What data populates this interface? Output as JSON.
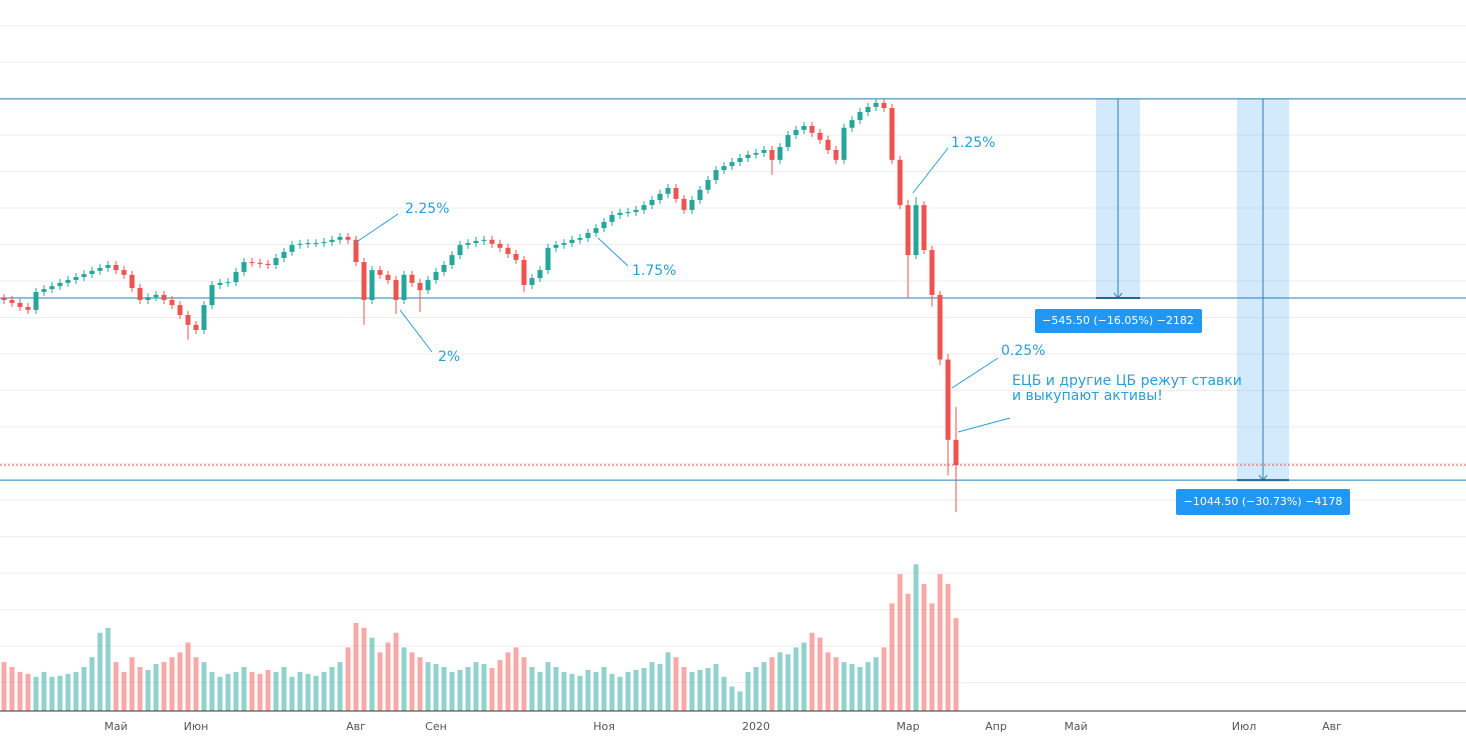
{
  "chart_data": {
    "type": "candlestick",
    "categories": [
      null,
      null,
      null,
      null,
      null,
      null,
      null,
      null,
      null,
      null,
      null,
      null,
      null,
      null,
      "Май",
      null,
      null,
      null,
      null,
      null,
      null,
      null,
      null,
      null,
      "Июн",
      null,
      null,
      null,
      null,
      null,
      null,
      null,
      null,
      null,
      null,
      null,
      null,
      null,
      null,
      null,
      null,
      null,
      null,
      null,
      "Авг",
      null,
      null,
      null,
      null,
      null,
      null,
      null,
      null,
      null,
      "Сен",
      null,
      null,
      null,
      null,
      null,
      null,
      null,
      null,
      null,
      null,
      null,
      null,
      null,
      null,
      null,
      null,
      null,
      null,
      null,
      null,
      "Ноя",
      null,
      null,
      null,
      null,
      null,
      null,
      null,
      null,
      null,
      null,
      null,
      null,
      null,
      null,
      null,
      null,
      null,
      null,
      "2020",
      null,
      null,
      null,
      null,
      null,
      null,
      null,
      null,
      null,
      null,
      null,
      null,
      null,
      null,
      null,
      null,
      null,
      null,
      "Мар",
      null,
      null,
      null,
      null,
      null,
      null,
      null,
      null,
      null,
      null,
      "Апр",
      null,
      null,
      null,
      null,
      null,
      null,
      null,
      null,
      null,
      "Май",
      null,
      null,
      null,
      null,
      null,
      null,
      null,
      null,
      null,
      null,
      null,
      null,
      null,
      null,
      null,
      null,
      null,
      null,
      null,
      null,
      "Июл",
      null,
      null,
      null,
      null,
      null,
      null,
      null,
      null,
      null,
      null,
      "Авг",
      null,
      null,
      null,
      null,
      null,
      null,
      null,
      null,
      null,
      null,
      null,
      null,
      null,
      null,
      null,
      null
    ],
    "candles": {
      "open": [
        2853,
        2848,
        2840,
        2829,
        2821,
        2870,
        2878,
        2886,
        2895,
        2903,
        2911,
        2919,
        2928,
        2936,
        2944,
        2930,
        2917,
        2881,
        2848,
        2856,
        2862,
        2848,
        2834,
        2807,
        2780,
        2766,
        2834,
        2889,
        2895,
        2897,
        2925,
        2952,
        2950,
        2947,
        2944,
        2963,
        2980,
        2999,
        3002,
        3004,
        3004,
        3007,
        3013,
        3021,
        3013,
        2952,
        2848,
        2930,
        2917,
        2903,
        2848,
        2917,
        2895,
        2875,
        2903,
        2925,
        2944,
        2971,
        2999,
        3004,
        3010,
        3013,
        3002,
        2991,
        2974,
        2958,
        2889,
        2908,
        2930,
        2991,
        2999,
        3004,
        3013,
        3018,
        3032,
        3045,
        3062,
        3081,
        3087,
        3089,
        3095,
        3108,
        3122,
        3139,
        3155,
        3125,
        3095,
        3122,
        3150,
        3177,
        3204,
        3215,
        3226,
        3237,
        3246,
        3251,
        3259,
        3232,
        3267,
        3300,
        3314,
        3325,
        3306,
        3287,
        3259,
        3232,
        3320,
        3341,
        3363,
        3377,
        3388,
        3374,
        3232,
        3108,
        2971,
        3108,
        2985,
        2862,
        2685,
        2465,
        null,
        null,
        null,
        null,
        null,
        null,
        null,
        null,
        null,
        null,
        null,
        null,
        null,
        null,
        null,
        null,
        null,
        null,
        null,
        null,
        null,
        null,
        null,
        null,
        null,
        null,
        null,
        null,
        null,
        null,
        null,
        null,
        null,
        null,
        null,
        null,
        null,
        null,
        null,
        null,
        null,
        null,
        null,
        null,
        null,
        null,
        null,
        null,
        null,
        null,
        null,
        null,
        null,
        null,
        null,
        null,
        null,
        null,
        null,
        null,
        null,
        null,
        null
      ],
      "high": [
        2864,
        2859,
        2851,
        2840,
        2881,
        2889,
        2897,
        2906,
        2914,
        2922,
        2930,
        2939,
        2947,
        2955,
        2955,
        2941,
        2928,
        2892,
        2867,
        2873,
        2873,
        2859,
        2845,
        2818,
        2791,
        2845,
        2900,
        2906,
        2908,
        2936,
        2963,
        2963,
        2961,
        2958,
        2974,
        2991,
        3010,
        3013,
        3015,
        3015,
        3018,
        3024,
        3032,
        3032,
        3024,
        2963,
        2941,
        2941,
        2928,
        2914,
        2928,
        2928,
        2906,
        2914,
        2936,
        2955,
        2982,
        3010,
        3015,
        3021,
        3024,
        3024,
        3013,
        3002,
        2985,
        2969,
        2919,
        2941,
        3002,
        3010,
        3015,
        3024,
        3029,
        3043,
        3056,
        3073,
        3092,
        3098,
        3100,
        3106,
        3119,
        3133,
        3150,
        3166,
        3166,
        3136,
        3133,
        3161,
        3188,
        3215,
        3226,
        3237,
        3248,
        3257,
        3262,
        3270,
        3270,
        3278,
        3311,
        3325,
        3336,
        3336,
        3317,
        3298,
        3270,
        3331,
        3352,
        3374,
        3388,
        3399,
        3399,
        3385,
        3243,
        3122,
        3130,
        3119,
        2996,
        2873,
        2700,
        2555,
        null,
        null,
        null,
        null,
        null,
        null,
        null,
        null,
        null,
        null,
        null,
        null,
        null,
        null,
        null,
        null,
        null,
        null,
        null,
        null,
        null,
        null,
        null,
        null,
        null,
        null,
        null,
        null,
        null,
        null,
        null,
        null,
        null,
        null,
        null,
        null,
        null,
        null,
        null,
        null,
        null,
        null,
        null,
        null,
        null,
        null,
        null,
        null,
        null,
        null,
        null,
        null,
        null,
        null,
        null,
        null,
        null,
        null,
        null,
        null,
        null,
        null,
        null
      ],
      "low": [
        2837,
        2829,
        2818,
        2810,
        2810,
        2859,
        2867,
        2875,
        2884,
        2892,
        2900,
        2908,
        2917,
        2925,
        2919,
        2906,
        2870,
        2837,
        2837,
        2845,
        2837,
        2823,
        2796,
        2739,
        2755,
        2755,
        2823,
        2878,
        2884,
        2886,
        2914,
        2939,
        2936,
        2933,
        2933,
        2952,
        2969,
        2988,
        2991,
        2993,
        2993,
        2996,
        3002,
        3002,
        2941,
        2780,
        2837,
        2906,
        2892,
        2810,
        2837,
        2884,
        2815,
        2864,
        2892,
        2914,
        2933,
        2960,
        2988,
        2993,
        2999,
        2991,
        2980,
        2963,
        2947,
        2870,
        2878,
        2897,
        2919,
        2980,
        2988,
        2993,
        3002,
        3007,
        3021,
        3034,
        3051,
        3070,
        3076,
        3078,
        3084,
        3097,
        3111,
        3128,
        3114,
        3084,
        3084,
        3111,
        3139,
        3166,
        3193,
        3204,
        3215,
        3226,
        3235,
        3240,
        3191,
        3221,
        3256,
        3289,
        3303,
        3295,
        3276,
        3248,
        3221,
        3221,
        3309,
        3330,
        3352,
        3366,
        3363,
        3221,
        3097,
        2853,
        2960,
        2974,
        2830,
        2670,
        2368,
        2267,
        null,
        null,
        null,
        null,
        null,
        null,
        null,
        null,
        null,
        null,
        null,
        null,
        null,
        null,
        null,
        null,
        null,
        null,
        null,
        null,
        null,
        null,
        null,
        null,
        null,
        null,
        null,
        null,
        null,
        null,
        null,
        null,
        null,
        null,
        null,
        null,
        null,
        null,
        null,
        null,
        null,
        null,
        null,
        null,
        null,
        null,
        null,
        null,
        null,
        null,
        null,
        null,
        null,
        null,
        null,
        null,
        null,
        null,
        null,
        null,
        null,
        null,
        null
      ],
      "close": [
        2848,
        2840,
        2829,
        2821,
        2870,
        2878,
        2886,
        2895,
        2903,
        2911,
        2919,
        2928,
        2936,
        2944,
        2930,
        2917,
        2881,
        2848,
        2856,
        2862,
        2848,
        2834,
        2807,
        2780,
        2766,
        2834,
        2889,
        2895,
        2897,
        2925,
        2952,
        2950,
        2947,
        2944,
        2963,
        2980,
        2999,
        3002,
        3004,
        3004,
        3007,
        3013,
        3021,
        3013,
        2952,
        2848,
        2930,
        2917,
        2903,
        2848,
        2917,
        2895,
        2875,
        2903,
        2925,
        2944,
        2971,
        2999,
        3004,
        3010,
        3013,
        3002,
        2991,
        2974,
        2958,
        2889,
        2908,
        2930,
        2991,
        2999,
        3004,
        3013,
        3018,
        3032,
        3045,
        3062,
        3081,
        3087,
        3089,
        3095,
        3108,
        3122,
        3139,
        3155,
        3125,
        3095,
        3122,
        3150,
        3177,
        3204,
        3215,
        3226,
        3237,
        3246,
        3251,
        3259,
        3232,
        3267,
        3300,
        3314,
        3325,
        3306,
        3287,
        3259,
        3232,
        3320,
        3341,
        3363,
        3377,
        3388,
        3374,
        3232,
        3108,
        2971,
        3108,
        2985,
        2862,
        2685,
        2465,
        2396,
        null,
        null,
        null,
        null,
        null,
        null,
        null,
        null,
        null,
        null,
        null,
        null,
        null,
        null,
        null,
        null,
        null,
        null,
        null,
        null,
        null,
        null,
        null,
        null,
        null,
        null,
        null,
        null,
        null,
        null,
        null,
        null,
        null,
        null,
        null,
        null,
        null,
        null,
        null,
        null,
        null,
        null,
        null,
        null,
        null,
        null,
        null,
        null,
        null,
        null,
        null,
        null,
        null,
        null,
        null,
        null,
        null,
        null,
        null,
        null,
        null,
        null,
        null
      ],
      "volume": [
        50,
        45,
        40,
        38,
        35,
        40,
        35,
        36,
        38,
        40,
        45,
        55,
        80,
        85,
        50,
        40,
        55,
        45,
        42,
        48,
        50,
        55,
        60,
        70,
        55,
        50,
        40,
        35,
        38,
        40,
        45,
        40,
        38,
        42,
        40,
        45,
        35,
        40,
        38,
        36,
        40,
        45,
        50,
        65,
        90,
        85,
        75,
        60,
        70,
        80,
        65,
        60,
        55,
        50,
        48,
        45,
        40,
        42,
        45,
        50,
        48,
        44,
        52,
        60,
        65,
        55,
        45,
        40,
        50,
        45,
        40,
        38,
        36,
        42,
        40,
        45,
        38,
        35,
        40,
        42,
        44,
        50,
        48,
        60,
        55,
        45,
        40,
        42,
        44,
        48,
        35,
        25,
        20,
        40,
        45,
        50,
        55,
        60,
        58,
        65,
        70,
        80,
        75,
        60,
        55,
        50,
        48,
        45,
        50,
        55,
        65,
        110,
        140,
        120,
        150,
        130,
        110,
        140,
        130,
        95,
        null,
        null,
        null,
        null,
        null,
        null,
        null,
        null,
        null,
        null,
        null,
        null,
        null,
        null,
        null,
        null,
        null,
        null,
        null,
        null,
        null,
        null,
        null,
        null,
        null,
        null,
        null,
        null,
        null,
        null,
        null,
        null,
        null,
        null,
        null,
        null,
        null,
        null,
        null,
        null,
        null,
        null,
        null,
        null,
        null,
        null,
        null,
        null,
        null,
        null,
        null,
        null,
        null,
        null,
        null,
        null,
        null,
        null,
        null,
        null,
        null,
        null,
        null
      ]
    },
    "up_color": "#26a69a",
    "down_color": "#ef5350",
    "ylim": [
      1722,
      3670
    ],
    "grid_values": [
      1800,
      1900,
      2000,
      2100,
      2200,
      2300,
      2400,
      2500,
      2600,
      2700,
      2800,
      2900,
      3000,
      3100,
      3200,
      3300,
      3400,
      3500,
      3600
    ],
    "volume_lim": [
      0,
      180
    ],
    "levels": [
      3399,
      2853.5,
      2354.5
    ],
    "measurements": [
      {
        "label": "−545.50 (−16.05%) −2182"
      },
      {
        "label": "−1044.50 (−30.73%) −4178"
      }
    ],
    "annotations": [
      "2.25%",
      "1.75%",
      "2%",
      "1.25%",
      "0.25%",
      "ЕЦБ и другие ЦБ режут ставки",
      "и выкупают активы!"
    ]
  }
}
